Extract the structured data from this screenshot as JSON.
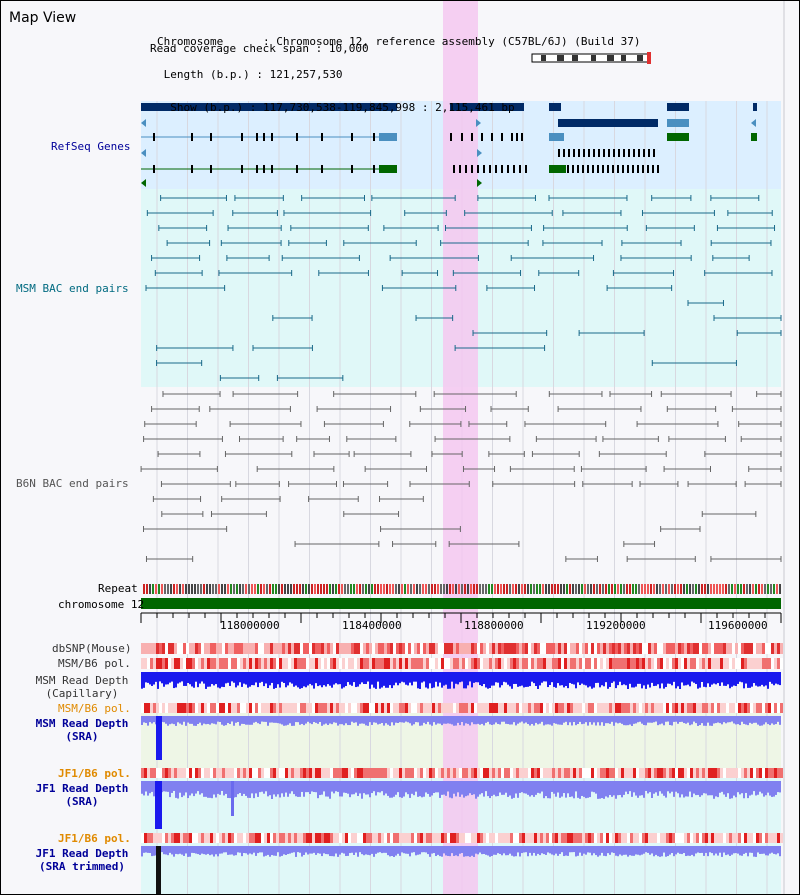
{
  "header": {
    "title": "Map View",
    "chromosome_key": "Chromosome",
    "chromosome_value": "Chromosome 12, reference assembly (C57BL/6J) (Build 37)",
    "length_key": "Length (b.p.)",
    "length_value": "121,257,530",
    "show_key": "Show (b.p.)",
    "show_value": "117,730,538-119,845,998 : 2,115,461 bp",
    "coverage_key": "Read coverage check span",
    "coverage_value": "10,000"
  },
  "tracks": {
    "refseq": "RefSeq Genes",
    "msm_bac": "MSM BAC end pairs",
    "b6n_bac": "B6N BAC end pairs",
    "repeat": "Repeat",
    "chromosome": "chromosome 12",
    "dbsnp": "dbSNP(Mouse)",
    "msm_b6_pol": "MSM/B6 pol.",
    "msm_depth_cap_1": "MSM Read Depth",
    "msm_depth_cap_2": "(Capillary)",
    "msm_b6_pol2": "MSM/B6 pol.",
    "msm_depth_sra_1": "MSM Read Depth",
    "msm_depth_sra_2": "(SRA)",
    "jf1_b6_pol": "JF1/B6 pol.",
    "jf1_depth_sra_1": "JF1 Read Depth",
    "jf1_depth_sra_2": "(SRA)",
    "jf1_b6_pol2": "JF1/B6 pol.",
    "jf1_depth_trim_1": "JF1 Read Depth",
    "jf1_depth_trim_2": "(SRA trimmed)"
  },
  "axis": {
    "ticks": [
      "118000000",
      "118400000",
      "118800000",
      "119200000",
      "119600000"
    ]
  },
  "colors": {
    "refseq_bg": "#dcefff",
    "msm_bg": "#e0f8f8",
    "gene_navy": "#002a66",
    "gene_steel": "#4a8fc0",
    "gene_green": "#006600",
    "bac_msm": "#1a6a8a",
    "bac_b6n": "#666666",
    "highlight": "#f5c8f0",
    "chromosome_bar": "#006600",
    "depth_blue": "#1a1aee",
    "depth_lavender": "#8080f0",
    "label_navy": "#000099",
    "label_teal": "#006a80",
    "label_orange": "#e08a00"
  }
}
